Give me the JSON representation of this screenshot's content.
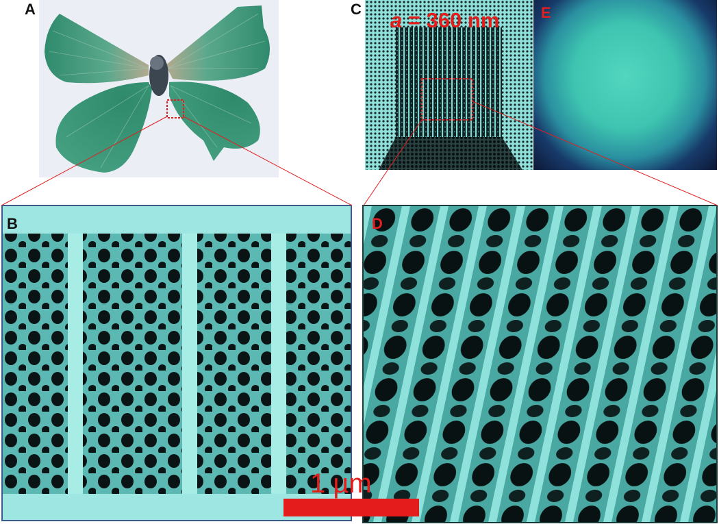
{
  "figure": {
    "panels": [
      {
        "id": "A",
        "label": "A",
        "content": "butterfly-photo"
      },
      {
        "id": "B",
        "label": "B",
        "content": "sem-cross-section"
      },
      {
        "id": "C",
        "label": "C",
        "content": "sem-top-lattice"
      },
      {
        "id": "D",
        "label": "D",
        "content": "sem-lattice-zoom"
      },
      {
        "id": "E",
        "label": "E",
        "content": "optical-reflectance"
      }
    ],
    "lattice_constant": {
      "symbol": "a",
      "rest": " = 360 nm"
    },
    "scale_bar": {
      "label": "1 µm"
    },
    "colors": {
      "label_black": "#111111",
      "label_red": "#e02020",
      "highlight_box": "#e02020",
      "sem_tint": "#7fd9d4",
      "sem_dark": "#0c1616",
      "wing_green": "#3f9c7e",
      "panel_e_green": "#40c9b3",
      "panel_e_dark": "#101a3a",
      "panel_border": "#3c5a8a"
    }
  }
}
